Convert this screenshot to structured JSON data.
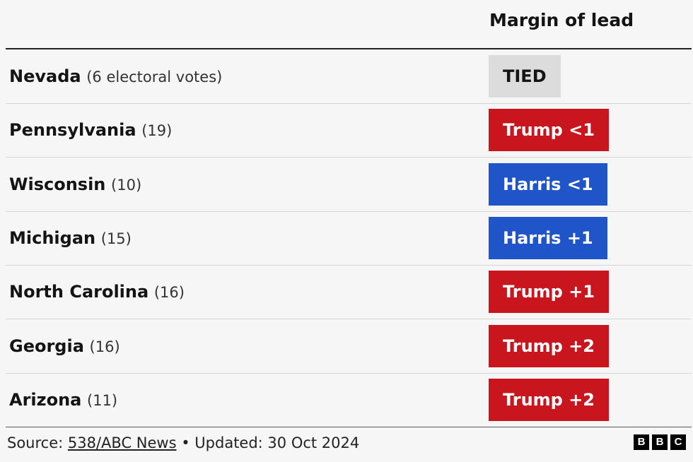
{
  "header": {
    "column_title": "Margin of lead"
  },
  "table": {
    "rows": [
      {
        "state": "Nevada",
        "votes": "(6 electoral votes)",
        "margin": "TIED",
        "color": "#dcdcdc",
        "text_color": "#141414"
      },
      {
        "state": "Pennsylvania",
        "votes": "(19)",
        "margin": "Trump <1",
        "color": "#c8151e",
        "text_color": "#ffffff"
      },
      {
        "state": "Wisconsin",
        "votes": "(10)",
        "margin": "Harris <1",
        "color": "#1f55c8",
        "text_color": "#ffffff"
      },
      {
        "state": "Michigan",
        "votes": "(15)",
        "margin": "Harris +1",
        "color": "#1f55c8",
        "text_color": "#ffffff"
      },
      {
        "state": "North Carolina",
        "votes": "(16)",
        "margin": "Trump +1",
        "color": "#c8151e",
        "text_color": "#ffffff"
      },
      {
        "state": "Georgia",
        "votes": "(16)",
        "margin": "Trump +2",
        "color": "#c8151e",
        "text_color": "#ffffff"
      },
      {
        "state": "Arizona",
        "votes": "(11)",
        "margin": "Trump +2",
        "color": "#c8151e",
        "text_color": "#ffffff"
      }
    ]
  },
  "footer": {
    "source_label": "Source:",
    "source_link": "538/ABC News",
    "updated": "• Updated: 30 Oct 2024",
    "logo": [
      "B",
      "B",
      "C"
    ]
  }
}
